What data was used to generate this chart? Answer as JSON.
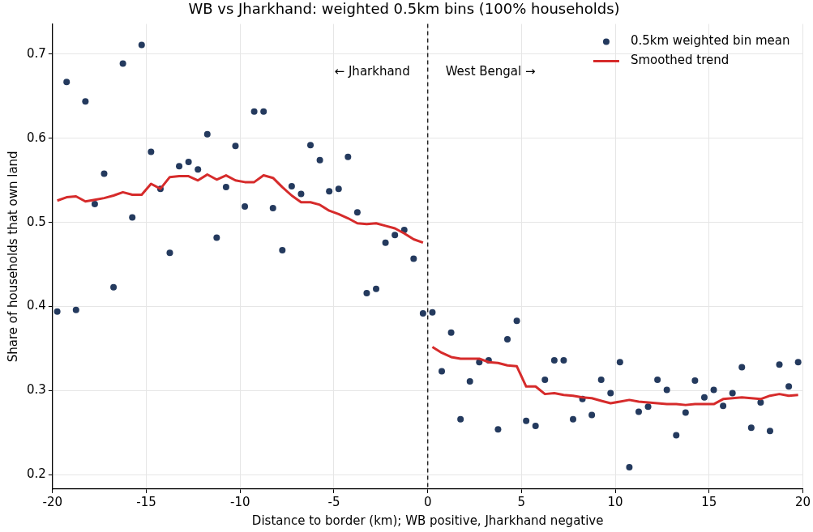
{
  "chart_data": {
    "type": "scatter",
    "title": "WB vs Jharkhand: weighted 0.5km bins (100% households)",
    "xlabel": "Distance to border (km); WB positive, Jharkhand negative",
    "ylabel": "Share of households that own land",
    "xlim": [
      -20,
      20
    ],
    "xticks": [
      -20,
      -15,
      -10,
      -5,
      0,
      5,
      10,
      15,
      20
    ],
    "ylim": [
      0.183,
      0.736
    ],
    "yticks": [
      0.2,
      0.3,
      0.4,
      0.5,
      0.6,
      0.7
    ],
    "grid": true,
    "legend": "top right",
    "ref_lines": [
      {
        "axis": "x",
        "value": 0,
        "color": "#222222",
        "line_style": "dashed"
      }
    ],
    "annotations": [
      "← Jharkhand",
      "West Bengal →"
    ],
    "series": [
      {
        "name": "0.5km weighted bin mean",
        "color": "#243a5e",
        "marker": "circle",
        "x": [
          -19.75,
          -19.25,
          -18.75,
          -18.25,
          -17.75,
          -17.25,
          -16.75,
          -16.25,
          -15.75,
          -15.25,
          -14.75,
          -14.25,
          -13.75,
          -13.25,
          -12.75,
          -12.25,
          -11.75,
          -11.25,
          -10.75,
          -10.25,
          -9.75,
          -9.25,
          -8.75,
          -8.25,
          -7.75,
          -7.25,
          -6.75,
          -6.25,
          -5.75,
          -5.25,
          -4.75,
          -4.25,
          -3.75,
          -3.25,
          -2.75,
          -2.25,
          -1.75,
          -1.25,
          -0.75,
          -0.25,
          0.25,
          0.75,
          1.25,
          1.75,
          2.25,
          2.75,
          3.25,
          3.75,
          4.25,
          4.75,
          5.25,
          5.75,
          6.25,
          6.75,
          7.25,
          7.75,
          8.25,
          8.75,
          9.25,
          9.75,
          10.25,
          10.75,
          11.25,
          11.75,
          12.25,
          12.75,
          13.25,
          13.75,
          14.25,
          14.75,
          15.25,
          15.75,
          16.25,
          16.75,
          17.25,
          17.75,
          18.25,
          18.75,
          19.25,
          19.75
        ],
        "values": [
          0.394,
          0.667,
          0.396,
          0.644,
          0.522,
          0.558,
          0.423,
          0.689,
          0.506,
          0.711,
          0.584,
          0.54,
          0.464,
          0.567,
          0.572,
          0.563,
          0.605,
          0.482,
          0.542,
          0.591,
          0.519,
          0.632,
          0.632,
          0.517,
          0.467,
          0.543,
          0.534,
          0.592,
          0.574,
          0.537,
          0.54,
          0.578,
          0.512,
          0.416,
          0.421,
          0.476,
          0.485,
          0.491,
          0.457,
          0.392,
          0.393,
          0.323,
          0.369,
          0.266,
          0.311,
          0.334,
          0.336,
          0.254,
          0.361,
          0.383,
          0.264,
          0.258,
          0.313,
          0.336,
          0.336,
          0.266,
          0.29,
          0.271,
          0.313,
          0.297,
          0.334,
          0.209,
          0.275,
          0.281,
          0.313,
          0.301,
          0.247,
          0.274,
          0.312,
          0.292,
          0.301,
          0.282,
          0.297,
          0.328,
          0.256,
          0.286,
          0.252,
          0.331,
          0.305,
          0.334
        ]
      },
      {
        "name": "Smoothed trend",
        "type": "line",
        "color": "#d62b2b",
        "marker": "none",
        "line_style": "solid",
        "x": [
          -19.75,
          -19.25,
          -18.75,
          -18.25,
          -17.75,
          -17.25,
          -16.75,
          -16.25,
          -15.75,
          -15.25,
          -14.75,
          -14.25,
          -13.75,
          -13.25,
          -12.75,
          -12.25,
          -11.75,
          -11.25,
          -10.75,
          -10.25,
          -9.75,
          -9.25,
          -8.75,
          -8.25,
          -7.75,
          -7.25,
          -6.75,
          -6.25,
          -5.75,
          -5.25,
          -4.75,
          -4.25,
          -3.75,
          -3.25,
          -2.75,
          -2.25,
          -1.75,
          -1.25,
          -0.75,
          -0.25,
          0,
          0.25,
          0.75,
          1.25,
          1.75,
          2.25,
          2.75,
          3.25,
          3.75,
          4.25,
          4.75,
          5.25,
          5.75,
          6.25,
          6.75,
          7.25,
          7.75,
          8.25,
          8.75,
          9.25,
          9.75,
          10.25,
          10.75,
          11.25,
          11.75,
          12.25,
          12.75,
          13.25,
          13.75,
          14.25,
          14.75,
          15.25,
          15.75,
          16.25,
          16.75,
          17.25,
          17.75,
          18.25,
          18.75,
          19.25,
          19.75
        ],
        "values": [
          0.526,
          0.53,
          0.531,
          0.525,
          0.527,
          0.529,
          0.532,
          0.536,
          0.533,
          0.533,
          0.546,
          0.54,
          0.554,
          0.555,
          0.555,
          0.55,
          0.557,
          0.551,
          0.556,
          0.55,
          0.548,
          0.548,
          0.556,
          0.553,
          0.542,
          0.532,
          0.524,
          0.524,
          0.521,
          0.514,
          0.51,
          0.505,
          0.499,
          0.498,
          0.499,
          0.496,
          0.493,
          0.487,
          0.48,
          0.476,
          null,
          0.352,
          0.345,
          0.34,
          0.338,
          0.338,
          0.338,
          0.334,
          0.333,
          0.33,
          0.329,
          0.305,
          0.305,
          0.296,
          0.297,
          0.295,
          0.294,
          0.292,
          0.291,
          0.288,
          0.285,
          0.287,
          0.289,
          0.287,
          0.286,
          0.285,
          0.284,
          0.284,
          0.283,
          0.284,
          0.284,
          0.284,
          0.29,
          0.291,
          0.292,
          0.291,
          0.29,
          0.294,
          0.296,
          0.294,
          0.295
        ]
      }
    ]
  }
}
